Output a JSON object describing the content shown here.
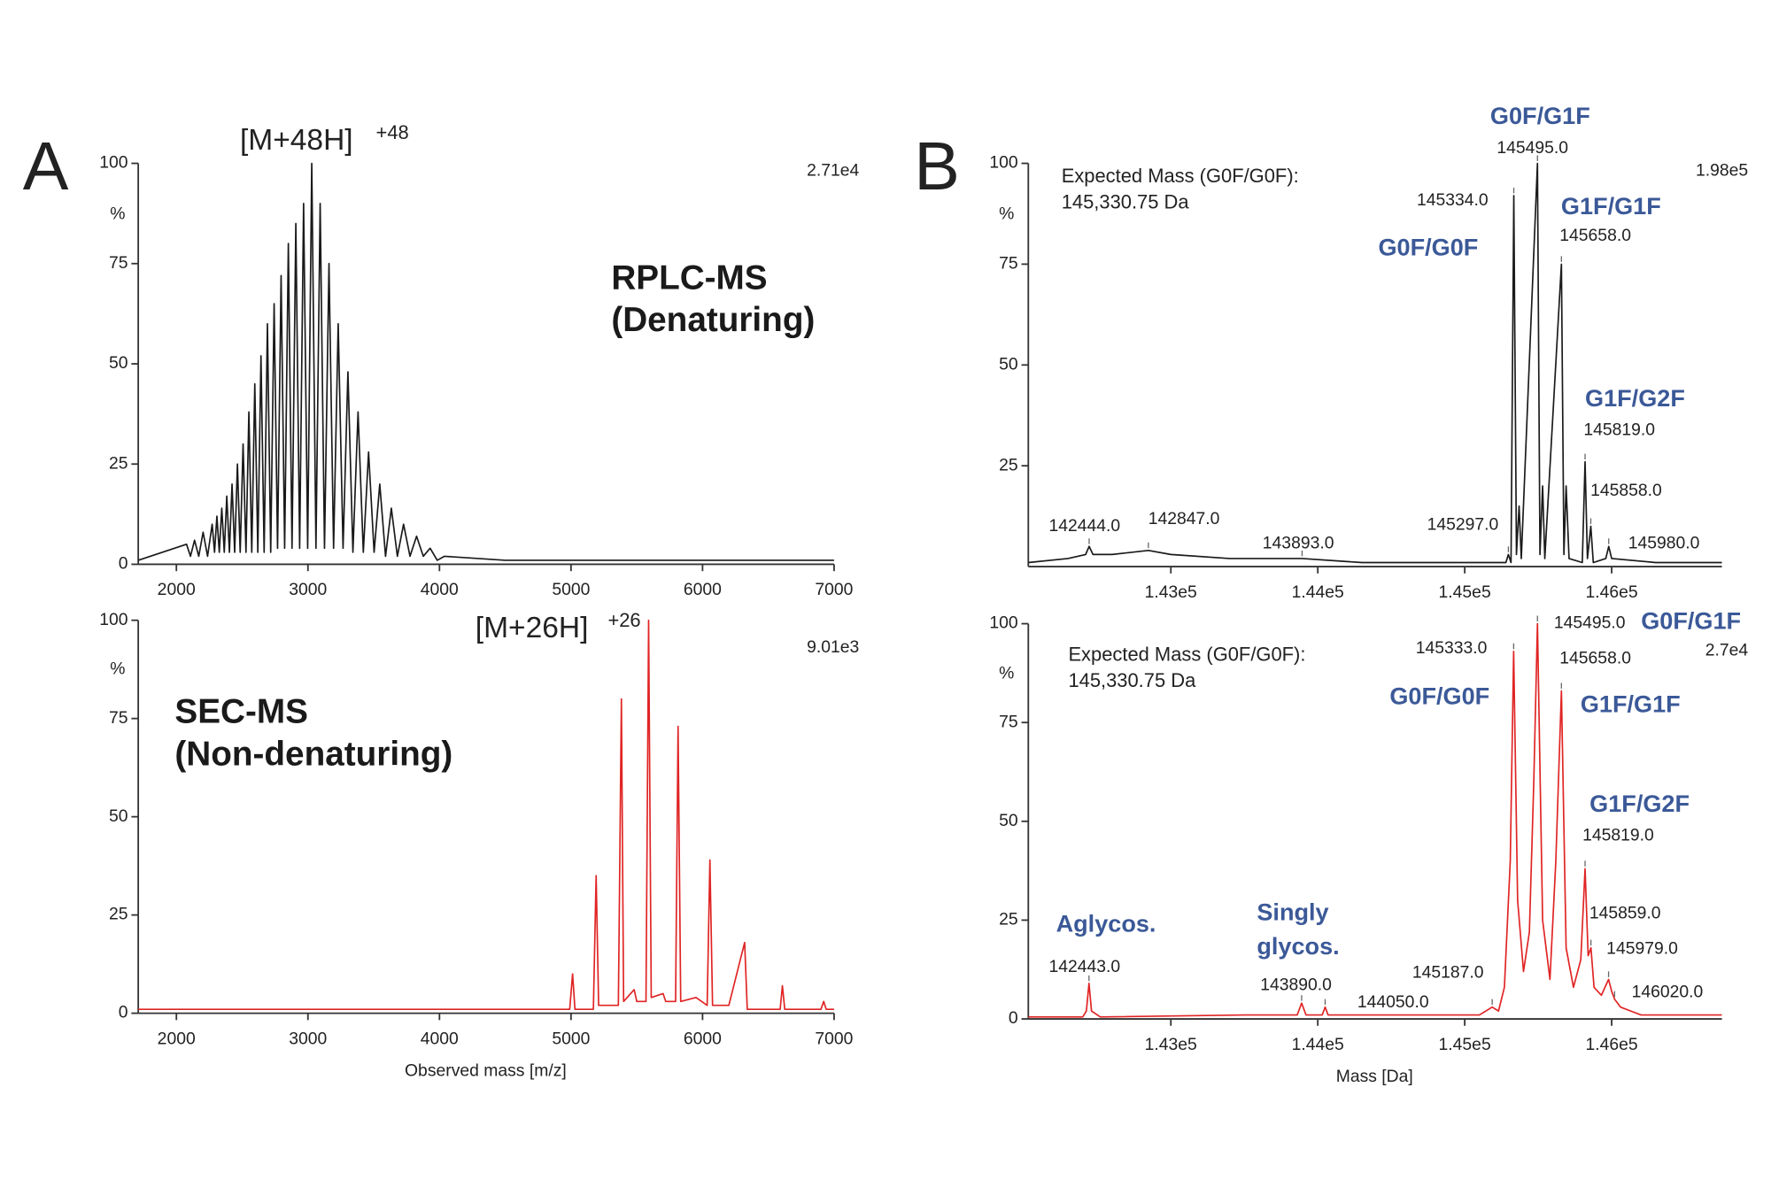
{
  "chart_data": [
    {
      "type": "line",
      "panel": "A",
      "color": "#1a1a1a",
      "x": [
        1710,
        2077,
        2107,
        2138,
        2170,
        2203,
        2237,
        2272,
        2290,
        2308,
        2326,
        2345,
        2364,
        2383,
        2403,
        2423,
        2443,
        2464,
        2485,
        2507,
        2529,
        2551,
        2573,
        2596,
        2619,
        2643,
        2667,
        2692,
        2717,
        2743,
        2769,
        2796,
        2823,
        2851,
        2879,
        2908,
        2937,
        2967,
        2998,
        3029,
        3061,
        3093,
        3126,
        3160,
        3195,
        3230,
        3267,
        3304,
        3342,
        3381,
        3421,
        3461,
        3503,
        3546,
        3590,
        3634,
        3680,
        3727,
        3776,
        3826,
        3877,
        3929,
        3983,
        4038,
        4500,
        5200,
        7000
      ],
      "values": [
        1,
        5,
        2,
        6,
        2,
        8,
        2,
        10,
        3,
        12,
        3,
        14,
        3,
        17,
        3,
        20,
        3,
        25,
        3,
        30,
        3,
        38,
        3,
        45,
        3,
        52,
        3,
        60,
        3,
        65,
        4,
        72,
        4,
        80,
        4,
        85,
        4,
        90,
        4,
        100,
        4,
        90,
        4,
        75,
        4,
        60,
        4,
        48,
        3,
        38,
        3,
        28,
        3,
        20,
        2,
        14,
        2,
        10,
        2,
        7,
        2,
        4,
        1,
        2,
        1,
        1,
        1
      ],
      "xlim": [
        1710,
        7000
      ],
      "ylim": [
        0,
        100
      ],
      "xticks": [
        2000,
        3000,
        4000,
        5000,
        6000,
        7000
      ],
      "yticks": [
        0,
        25,
        50,
        75,
        100
      ],
      "y_label": "%",
      "scale_label": "2.71e4",
      "ion_label": "[M+48H]",
      "ion_charge": "+48",
      "method_label": [
        "RPLC-MS",
        "(Denaturing)"
      ]
    },
    {
      "type": "line",
      "color": "#e02424",
      "x": [
        1710,
        4990,
        5012,
        5030,
        5170,
        5191,
        5210,
        5360,
        5383,
        5400,
        5480,
        5500,
        5570,
        5590,
        5610,
        5700,
        5720,
        5795,
        5814,
        5834,
        5950,
        6035,
        6056,
        6076,
        6200,
        6320,
        6340,
        6590,
        6607,
        6625,
        6900,
        6921,
        6940,
        7000
      ],
      "values": [
        1,
        1,
        10,
        1,
        1,
        35,
        2,
        2,
        80,
        3,
        6,
        3,
        3,
        100,
        4,
        5,
        3,
        3,
        73,
        3,
        4,
        2,
        39,
        2,
        2,
        18,
        1,
        1,
        7,
        1,
        1,
        3,
        1,
        1
      ],
      "xlim": [
        1710,
        7000
      ],
      "ylim": [
        0,
        100
      ],
      "xticks": [
        2000,
        3000,
        4000,
        5000,
        6000,
        7000
      ],
      "yticks": [
        0,
        25,
        50,
        75,
        100
      ],
      "y_label": "%",
      "scale_label": "9.01e3",
      "ion_label": "[M+26H]",
      "ion_charge": "+26",
      "method_label": [
        "SEC-MS",
        "(Non-denaturing)"
      ],
      "x_label": "Observed mass [m/z]"
    },
    {
      "type": "line",
      "panel": "B",
      "color": "#1a1a1a",
      "x": [
        142030,
        142300,
        142420,
        142444,
        142470,
        142600,
        142847,
        143000,
        143400,
        143893,
        144300,
        145000,
        145280,
        145297,
        145315,
        145334,
        145352,
        145370,
        145385,
        145495,
        145512,
        145530,
        145545,
        145658,
        145675,
        145690,
        145710,
        145800,
        145819,
        145835,
        145858,
        145875,
        145960,
        145980,
        146000,
        146300,
        146750
      ],
      "values": [
        1,
        2,
        3,
        5,
        3,
        3,
        4,
        3,
        2,
        2,
        1,
        1,
        1,
        3,
        1,
        92,
        3,
        15,
        2,
        100,
        3,
        20,
        2,
        75,
        3,
        20,
        2,
        1,
        26,
        2,
        10,
        1,
        2,
        5,
        2,
        1,
        1
      ],
      "xlim": [
        142030,
        146750
      ],
      "ylim": [
        0,
        100
      ],
      "xticks": [
        {
          "value": 143000,
          "label": "1.43e5"
        },
        {
          "value": 144000,
          "label": "1.44e5"
        },
        {
          "value": 145000,
          "label": "1.45e5"
        },
        {
          "value": 146000,
          "label": "1.46e5"
        }
      ],
      "yticks": [
        25,
        50,
        75,
        100
      ],
      "y_label": "%",
      "scale_label": "1.98e5",
      "note": [
        "Expected Mass (G0F/G0F):",
        "145,330.75 Da"
      ],
      "glycoform_labels": [
        "G0F/G1F",
        "G0F/G0F",
        "G1F/G1F",
        "G1F/G2F"
      ],
      "mass_labels": [
        {
          "value": 142444,
          "label": "142444.0"
        },
        {
          "value": 142847,
          "label": "142847.0"
        },
        {
          "value": 143893,
          "label": "143893.0"
        },
        {
          "value": 145297,
          "label": "145297.0"
        },
        {
          "value": 145334,
          "label": "145334.0"
        },
        {
          "value": 145495,
          "label": "145495.0"
        },
        {
          "value": 145658,
          "label": "145658.0"
        },
        {
          "value": 145819,
          "label": "145819.0"
        },
        {
          "value": 145858,
          "label": "145858.0"
        },
        {
          "value": 145980,
          "label": "145980.0"
        }
      ]
    },
    {
      "type": "line",
      "color": "#e02424",
      "x": [
        142030,
        142400,
        142425,
        142443,
        142460,
        142520,
        143500,
        143860,
        143890,
        143920,
        144030,
        144050,
        144070,
        145100,
        145187,
        145230,
        145270,
        145310,
        145333,
        145360,
        145400,
        145440,
        145470,
        145495,
        145530,
        145580,
        145620,
        145658,
        145690,
        145740,
        145790,
        145819,
        145840,
        145859,
        145880,
        145930,
        145979,
        146000,
        146020,
        146060,
        146200,
        146750
      ],
      "values": [
        0.5,
        0.5,
        2,
        9,
        2,
        0.5,
        1,
        1,
        4,
        1,
        1,
        3,
        1,
        1,
        3,
        2,
        8,
        40,
        93,
        30,
        12,
        22,
        60,
        100,
        25,
        10,
        40,
        83,
        18,
        8,
        15,
        38,
        16,
        18,
        8,
        6,
        10,
        7,
        5,
        3,
        1,
        1
      ],
      "xlim": [
        142030,
        146750
      ],
      "ylim": [
        0,
        100
      ],
      "xticks": [
        {
          "value": 143000,
          "label": "1.43e5"
        },
        {
          "value": 144000,
          "label": "1.44e5"
        },
        {
          "value": 145000,
          "label": "1.45e5"
        },
        {
          "value": 146000,
          "label": "1.46e5"
        }
      ],
      "yticks": [
        0,
        25,
        50,
        75,
        100
      ],
      "y_label": "%",
      "scale_label": "2.7e4",
      "x_label": "Mass [Da]",
      "note": [
        "Expected Mass (G0F/G0F):",
        "145,330.75 Da"
      ],
      "glycoform_labels": [
        "G0F/G1F",
        "G0F/G0F",
        "G1F/G1F",
        "G1F/G2F"
      ],
      "species_labels": [
        [
          "Aglycos."
        ],
        [
          "Singly",
          "glycos."
        ]
      ],
      "mass_labels": [
        {
          "value": 142443,
          "label": "142443.0"
        },
        {
          "value": 143890,
          "label": "143890.0"
        },
        {
          "value": 144050,
          "label": "144050.0"
        },
        {
          "value": 145187,
          "label": "145187.0"
        },
        {
          "value": 145333,
          "label": "145333.0"
        },
        {
          "value": 145495,
          "label": "145495.0"
        },
        {
          "value": 145658,
          "label": "145658.0"
        },
        {
          "value": 145819,
          "label": "145819.0"
        },
        {
          "value": 145859,
          "label": "145859.0"
        },
        {
          "value": 145979,
          "label": "145979.0"
        },
        {
          "value": 146020,
          "label": "146020.0"
        }
      ]
    }
  ]
}
